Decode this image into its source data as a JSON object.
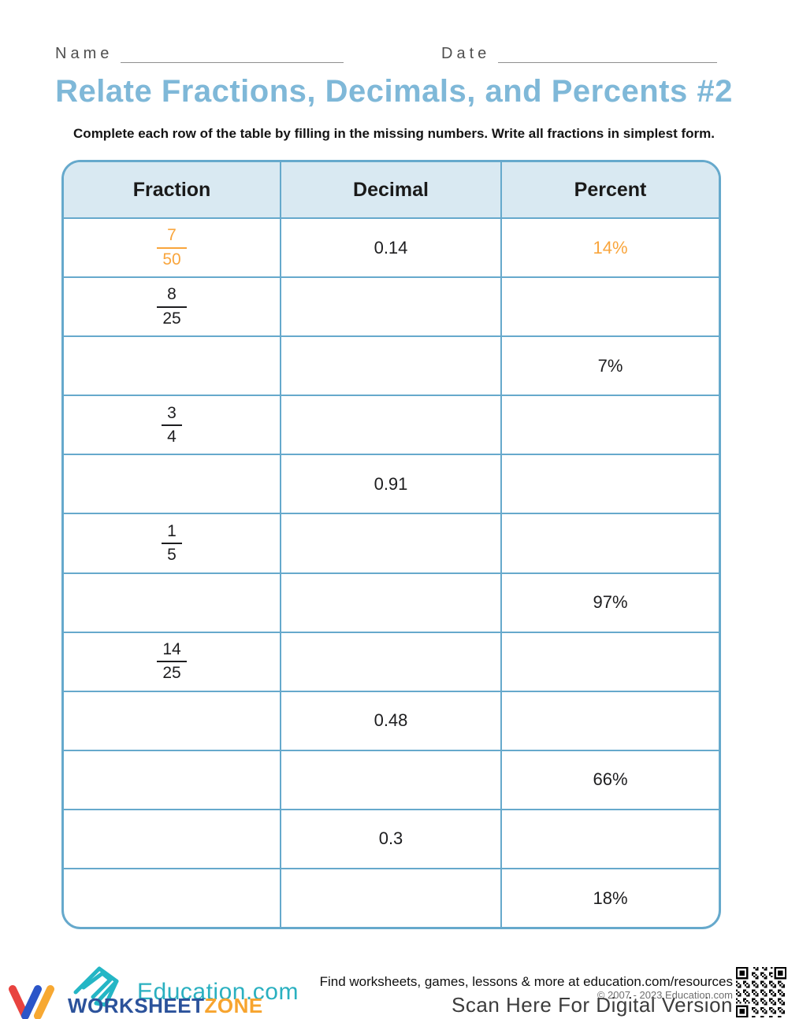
{
  "colors": {
    "title_blue": "#7FB8D8",
    "table_border": "#66A9CC",
    "header_fill": "#D9E9F2",
    "accent_orange": "#F9A53C"
  },
  "header": {
    "name_label": "Name",
    "date_label": "Date"
  },
  "title": "Relate Fractions, Decimals, and Percents #2",
  "instruction": "Complete each row of the table by filling in the missing numbers. Write all fractions in simplest form.",
  "table": {
    "headers": [
      "Fraction",
      "Decimal",
      "Percent"
    ],
    "rows": [
      {
        "fraction": {
          "numerator": "7",
          "denominator": "50"
        },
        "decimal": "0.14",
        "percent": "14%",
        "accent": true
      },
      {
        "fraction": {
          "numerator": "8",
          "denominator": "25"
        },
        "decimal": "",
        "percent": "",
        "accent": false
      },
      {
        "fraction": null,
        "decimal": "",
        "percent": "7%",
        "accent": false
      },
      {
        "fraction": {
          "numerator": "3",
          "denominator": "4"
        },
        "decimal": "",
        "percent": "",
        "accent": false
      },
      {
        "fraction": null,
        "decimal": "0.91",
        "percent": "",
        "accent": false
      },
      {
        "fraction": {
          "numerator": "1",
          "denominator": "5"
        },
        "decimal": "",
        "percent": "",
        "accent": false
      },
      {
        "fraction": null,
        "decimal": "",
        "percent": "97%",
        "accent": false
      },
      {
        "fraction": {
          "numerator": "14",
          "denominator": "25"
        },
        "decimal": "",
        "percent": "",
        "accent": false
      },
      {
        "fraction": null,
        "decimal": "0.48",
        "percent": "",
        "accent": false
      },
      {
        "fraction": null,
        "decimal": "",
        "percent": "66%",
        "accent": false
      },
      {
        "fraction": null,
        "decimal": "0.3",
        "percent": "",
        "accent": false
      },
      {
        "fraction": null,
        "decimal": "",
        "percent": "18%",
        "accent": false
      }
    ]
  },
  "footer": {
    "education_logo_text": "Education.com",
    "worksheet_logo_word1": "WORKSHEET",
    "worksheet_logo_word2": "ZONE",
    "find_text": "Find worksheets, games, lessons & more at education.com/resources",
    "copyright": "© 2007 - 2023 Education.com",
    "scan_text": "Scan Here For Digital Version"
  }
}
